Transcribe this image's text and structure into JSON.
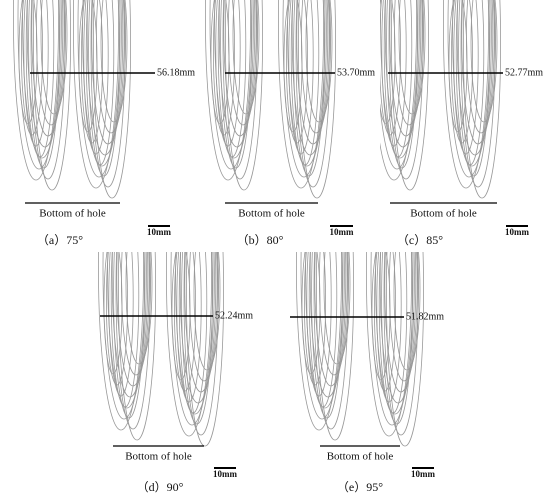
{
  "panels": [
    {
      "caption": "（a）75°",
      "measurement": "56.18mm",
      "bottom_label": "Bottom of hole",
      "scale_label": "10mm"
    },
    {
      "caption": "（b）80°",
      "measurement": "53.70mm",
      "bottom_label": "Bottom of hole",
      "scale_label": "10mm"
    },
    {
      "caption": "（c）85°",
      "measurement": "52.77mm",
      "bottom_label": "Bottom of hole",
      "scale_label": "10mm"
    },
    {
      "caption": "（d）90°",
      "measurement": "52.24mm",
      "bottom_label": "Bottom of hole",
      "scale_label": "10mm"
    },
    {
      "caption": "（e）95°",
      "measurement": "51.82mm",
      "bottom_label": "Bottom of hole",
      "scale_label": "10mm"
    }
  ]
}
